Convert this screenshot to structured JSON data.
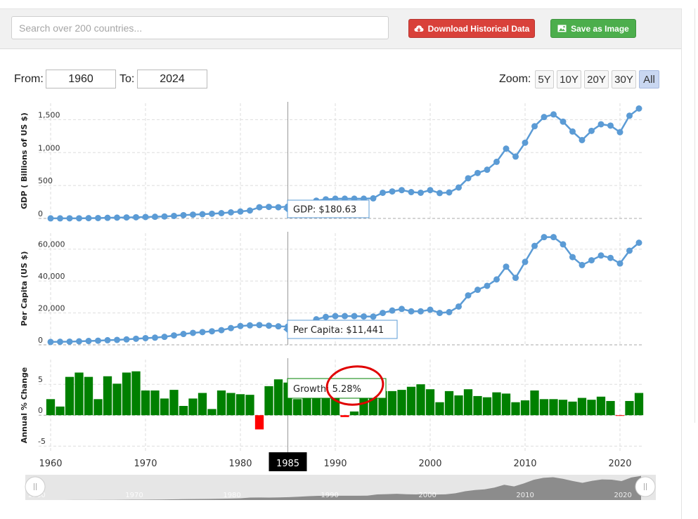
{
  "toolbar": {
    "search_placeholder": "Search over 200 countries...",
    "download_label": "Download Historical Data",
    "save_label": "Save as Image"
  },
  "range": {
    "from_label": "From:",
    "from_value": "1960",
    "to_label": "To:",
    "to_value": "2024",
    "zoom_label": "Zoom:",
    "zoom_options": [
      "5Y",
      "10Y",
      "20Y",
      "30Y",
      "All"
    ],
    "zoom_selected": "All"
  },
  "colors": {
    "line": "#5b9bd5",
    "bar_positive": "#008000",
    "bar_negative": "#ff0000",
    "highlight_ring": "#e00000"
  },
  "chart_data": [
    {
      "type": "line",
      "ylabel": "GDP ( Billions of US $)",
      "yticks": [
        0,
        500,
        1000,
        1500
      ],
      "ytick_labels": [
        "0",
        "500",
        "1,000",
        "1,500"
      ],
      "ylim": [
        0,
        1750
      ],
      "x": [
        1960,
        1961,
        1962,
        1963,
        1964,
        1965,
        1966,
        1967,
        1968,
        1969,
        1970,
        1971,
        1972,
        1973,
        1974,
        1975,
        1976,
        1977,
        1978,
        1979,
        1980,
        1981,
        1982,
        1983,
        1984,
        1985,
        1986,
        1987,
        1988,
        1989,
        1990,
        1991,
        1992,
        1993,
        1994,
        1995,
        1996,
        1997,
        1998,
        1999,
        2000,
        2001,
        2002,
        2003,
        2004,
        2005,
        2006,
        2007,
        2008,
        2009,
        2010,
        2011,
        2012,
        2013,
        2014,
        2015,
        2016,
        2017,
        2018,
        2019,
        2020,
        2021,
        2022
      ],
      "values": [
        1,
        1,
        2,
        2,
        4,
        6,
        9,
        12,
        15,
        18,
        22,
        25,
        30,
        38,
        50,
        58,
        64,
        71,
        80,
        92,
        105,
        120,
        170,
        175,
        170,
        180.63,
        200,
        230,
        270,
        290,
        300,
        300,
        300,
        300,
        305,
        390,
        410,
        430,
        400,
        390,
        430,
        385,
        395,
        470,
        610,
        690,
        740,
        860,
        1060,
        940,
        1150,
        1400,
        1540,
        1580,
        1470,
        1320,
        1190,
        1330,
        1430,
        1410,
        1310,
        1560,
        1670
      ],
      "tooltip": "GDP: $180.63",
      "grid": true
    },
    {
      "type": "line",
      "ylabel": "Per Capita (US $)",
      "yticks": [
        0,
        20000,
        40000,
        60000
      ],
      "ytick_labels": [
        "0",
        "20,000",
        "40,000",
        "60,000"
      ],
      "ylim": [
        0,
        70000
      ],
      "x": [
        1960,
        1961,
        1962,
        1963,
        1964,
        1965,
        1966,
        1967,
        1968,
        1969,
        1970,
        1971,
        1972,
        1973,
        1974,
        1975,
        1976,
        1977,
        1978,
        1979,
        1980,
        1981,
        1982,
        1983,
        1984,
        1985,
        1986,
        1987,
        1988,
        1989,
        1990,
        1991,
        1992,
        1993,
        1994,
        1995,
        1996,
        1997,
        1998,
        1999,
        2000,
        2001,
        2002,
        2003,
        2004,
        2005,
        2006,
        2007,
        2008,
        2009,
        2010,
        2011,
        2012,
        2013,
        2014,
        2015,
        2016,
        2017,
        2018,
        2019,
        2020,
        2021,
        2022
      ],
      "values": [
        1800,
        1900,
        2000,
        2200,
        2400,
        2600,
        2900,
        3100,
        3400,
        3800,
        4200,
        4500,
        5000,
        5900,
        6800,
        7500,
        8000,
        8500,
        9200,
        10500,
        11800,
        12200,
        12400,
        12000,
        11600,
        11441,
        12000,
        13500,
        16000,
        17500,
        18000,
        18000,
        18000,
        17800,
        17700,
        20000,
        21500,
        22500,
        21000,
        21000,
        22000,
        20000,
        20500,
        24000,
        31000,
        34500,
        37000,
        41000,
        49000,
        42000,
        52000,
        62000,
        67500,
        67500,
        63000,
        55000,
        50000,
        53000,
        56000,
        54500,
        51000,
        59000,
        64000
      ],
      "tooltip": "Per Capita: $11,441",
      "grid": true
    },
    {
      "type": "bar",
      "ylabel": "Annual % Change",
      "yticks": [
        -5,
        0,
        5
      ],
      "ytick_labels": [
        "-5",
        "0",
        "5"
      ],
      "ylim": [
        -6,
        9
      ],
      "x": [
        1960,
        1961,
        1962,
        1963,
        1964,
        1965,
        1966,
        1967,
        1968,
        1969,
        1970,
        1971,
        1972,
        1973,
        1974,
        1975,
        1976,
        1977,
        1978,
        1979,
        1980,
        1981,
        1982,
        1983,
        1984,
        1985,
        1986,
        1987,
        1988,
        1989,
        1990,
        1991,
        1992,
        1993,
        1994,
        1995,
        1996,
        1997,
        1998,
        1999,
        2000,
        2001,
        2002,
        2003,
        2004,
        2005,
        2006,
        2007,
        2008,
        2009,
        2010,
        2011,
        2012,
        2013,
        2014,
        2015,
        2016,
        2017,
        2018,
        2019,
        2020,
        2021,
        2022
      ],
      "values": [
        2.6,
        1.4,
        6.2,
        6.9,
        6.2,
        2.6,
        6.3,
        5.1,
        6.9,
        7.1,
        4.0,
        4.0,
        2.7,
        4.1,
        1.5,
        2.7,
        3.6,
        1.0,
        4.0,
        3.6,
        3.4,
        3.3,
        -2.3,
        4.7,
        5.8,
        5.28,
        2.6,
        4.0,
        4.3,
        3.8,
        3.9,
        -0.3,
        0.6,
        5.0,
        4.2,
        3.9,
        3.9,
        4.1,
        4.6,
        5.0,
        4.2,
        2.1,
        3.9,
        3.2,
        4.2,
        3.1,
        2.9,
        3.7,
        3.5,
        2.1,
        2.4,
        4.0,
        2.6,
        2.6,
        2.5,
        2.2,
        2.8,
        2.5,
        3.0,
        2.3,
        -0.1,
        2.3,
        3.6
      ],
      "tooltip": "Growth: 5.28%",
      "grid": true
    }
  ],
  "x_axis": {
    "ticks": [
      1960,
      1970,
      1980,
      1990,
      2000,
      2010,
      2020
    ],
    "highlight": "1985"
  },
  "navigator": {
    "labels": [
      "1960",
      "1970",
      "1980",
      "1990",
      "2000",
      "2010",
      "2020"
    ]
  }
}
